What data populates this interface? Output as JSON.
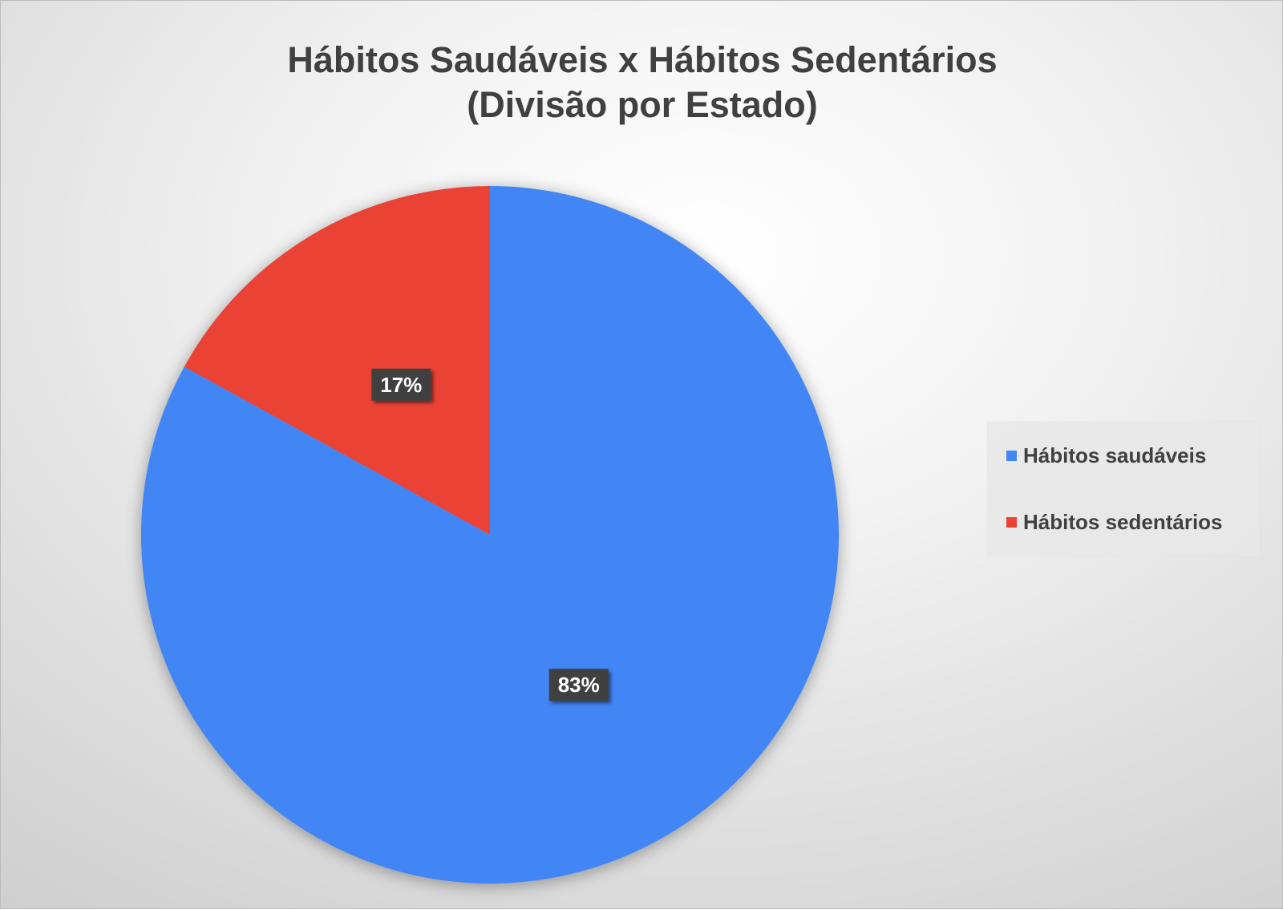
{
  "colors": {
    "healthy": "#4285f4",
    "sedentary": "#ea4335",
    "label_bg": "#404040",
    "label_text": "#ffffff",
    "title": "#404040"
  },
  "chart_data": {
    "type": "pie",
    "title_lines": [
      "Hábitos Saudáveis x Hábitos Sedentários",
      "(Divisão por Estado)"
    ],
    "categories": [
      "Hábitos saudáveis",
      "Hábitos sedentários"
    ],
    "values": [
      83,
      17
    ],
    "data_labels": [
      "83%",
      "17%"
    ],
    "start_angle": "12 o'clock, clockwise",
    "legend_position": "right"
  }
}
